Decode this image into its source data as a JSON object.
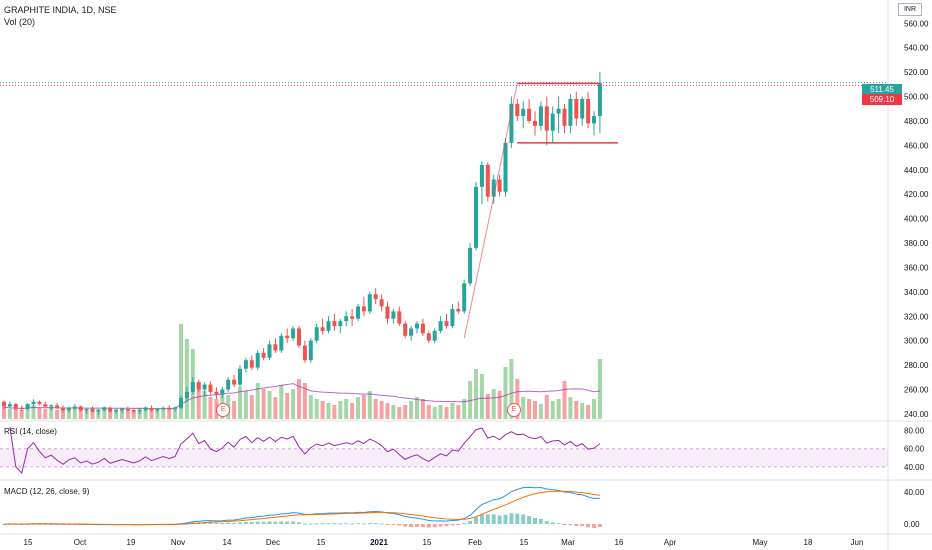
{
  "header": {
    "title": "GRAPHITE INDIA, 1D, NSE",
    "volume_label": "Vol (20)",
    "currency": "INR"
  },
  "indicators": {
    "rsi_label": "RSI (14, close)",
    "macd_label": "MACD (12, 26, close, 9)"
  },
  "price_tags": {
    "last": "511.45",
    "level": "509.10"
  },
  "events": [
    "E",
    "E"
  ],
  "colors": {
    "up": "#26a69a",
    "down": "#ef5350",
    "vol_up": "#a5d6a7",
    "vol_down": "#f7a1a4",
    "rsi_line": "#9c27b0",
    "macd_line": "#2196f3",
    "signal_line": "#ff6d00",
    "drawing": "#f23645"
  },
  "chart_data": [
    {
      "type": "candlestick",
      "title": "GRAPHITE INDIA, 1D, NSE",
      "price_axis": {
        "ticks": [
          240,
          260,
          280,
          300,
          320,
          340,
          360,
          380,
          400,
          420,
          440,
          460,
          480,
          500,
          520,
          540,
          560
        ],
        "range": [
          235,
          575
        ]
      },
      "time_axis": {
        "ticks": [
          "15",
          "Oct",
          "19",
          "Nov",
          "14",
          "Dec",
          "15",
          "2021",
          "15",
          "Feb",
          "15",
          "Mar",
          "16",
          "Apr",
          "May",
          "18",
          "Jun"
        ]
      },
      "candles": [
        [
          250,
          251,
          244,
          246
        ],
        [
          246,
          250,
          245,
          248
        ],
        [
          248,
          249,
          243,
          245
        ],
        [
          245,
          247,
          242,
          244
        ],
        [
          244,
          249,
          243,
          248
        ],
        [
          248,
          252,
          246,
          250
        ],
        [
          250,
          251,
          247,
          248
        ],
        [
          248,
          250,
          245,
          246
        ],
        [
          246,
          248,
          243,
          247
        ],
        [
          247,
          249,
          244,
          245
        ],
        [
          245,
          247,
          241,
          243
        ],
        [
          243,
          246,
          241,
          245
        ],
        [
          245,
          248,
          243,
          246
        ],
        [
          246,
          247,
          242,
          243
        ],
        [
          243,
          245,
          240,
          244
        ],
        [
          244,
          246,
          241,
          242
        ],
        [
          242,
          244,
          239,
          243
        ],
        [
          243,
          246,
          242,
          245
        ],
        [
          245,
          246,
          241,
          242
        ],
        [
          242,
          244,
          240,
          243
        ],
        [
          243,
          245,
          241,
          244
        ],
        [
          244,
          246,
          242,
          243
        ],
        [
          243,
          245,
          241,
          242
        ],
        [
          242,
          244,
          240,
          243
        ],
        [
          243,
          246,
          242,
          245
        ],
        [
          245,
          247,
          242,
          243
        ],
        [
          243,
          245,
          241,
          244
        ],
        [
          244,
          246,
          243,
          245
        ],
        [
          245,
          247,
          243,
          244
        ],
        [
          244,
          246,
          242,
          245
        ],
        [
          245,
          255,
          244,
          253
        ],
        [
          253,
          262,
          250,
          258
        ],
        [
          258,
          270,
          256,
          266
        ],
        [
          266,
          268,
          258,
          260
        ],
        [
          260,
          266,
          255,
          264
        ],
        [
          264,
          267,
          256,
          258
        ],
        [
          258,
          262,
          252,
          256
        ],
        [
          256,
          262,
          253,
          260
        ],
        [
          260,
          270,
          258,
          268
        ],
        [
          268,
          272,
          262,
          264
        ],
        [
          264,
          280,
          262,
          277
        ],
        [
          277,
          286,
          274,
          284
        ],
        [
          284,
          288,
          276,
          278
        ],
        [
          278,
          292,
          276,
          290
        ],
        [
          290,
          294,
          284,
          286
        ],
        [
          286,
          300,
          284,
          297
        ],
        [
          297,
          302,
          290,
          292
        ],
        [
          292,
          306,
          290,
          304
        ],
        [
          304,
          310,
          298,
          302
        ],
        [
          302,
          312,
          300,
          310
        ],
        [
          310,
          312,
          294,
          296
        ],
        [
          296,
          300,
          282,
          284
        ],
        [
          284,
          302,
          282,
          300
        ],
        [
          300,
          314,
          298,
          311
        ],
        [
          311,
          318,
          305,
          308
        ],
        [
          308,
          320,
          306,
          316
        ],
        [
          316,
          322,
          308,
          312
        ],
        [
          312,
          318,
          306,
          316
        ],
        [
          316,
          324,
          312,
          320
        ],
        [
          320,
          326,
          312,
          318
        ],
        [
          318,
          330,
          316,
          328
        ],
        [
          328,
          336,
          320,
          324
        ],
        [
          324,
          340,
          322,
          338
        ],
        [
          338,
          343,
          330,
          334
        ],
        [
          334,
          338,
          324,
          328
        ],
        [
          328,
          332,
          314,
          318
        ],
        [
          318,
          326,
          314,
          324
        ],
        [
          324,
          328,
          312,
          314
        ],
        [
          314,
          316,
          302,
          304
        ],
        [
          304,
          312,
          300,
          310
        ],
        [
          310,
          316,
          306,
          314
        ],
        [
          314,
          318,
          304,
          306
        ],
        [
          306,
          308,
          298,
          300
        ],
        [
          300,
          310,
          298,
          308
        ],
        [
          308,
          320,
          306,
          316
        ],
        [
          316,
          322,
          310,
          312
        ],
        [
          312,
          330,
          310,
          326
        ],
        [
          326,
          332,
          322,
          324
        ],
        [
          324,
          350,
          322,
          347
        ],
        [
          347,
          380,
          345,
          376
        ],
        [
          376,
          430,
          374,
          426
        ],
        [
          426,
          447,
          412,
          444
        ],
        [
          444,
          446,
          414,
          418
        ],
        [
          418,
          436,
          412,
          432
        ],
        [
          432,
          436,
          418,
          422
        ],
        [
          422,
          466,
          418,
          462
        ],
        [
          462,
          500,
          458,
          494
        ],
        [
          494,
          498,
          480,
          484
        ],
        [
          484,
          496,
          474,
          490
        ],
        [
          490,
          498,
          478,
          480
        ],
        [
          480,
          488,
          468,
          476
        ],
        [
          476,
          496,
          472,
          492
        ],
        [
          492,
          500,
          460,
          472
        ],
        [
          472,
          492,
          462,
          486
        ],
        [
          486,
          500,
          470,
          490
        ],
        [
          490,
          494,
          470,
          476
        ],
        [
          476,
          502,
          470,
          498
        ],
        [
          498,
          504,
          476,
          482
        ],
        [
          482,
          500,
          476,
          498
        ],
        [
          498,
          504,
          474,
          478
        ],
        [
          478,
          488,
          468,
          484
        ],
        [
          484,
          520,
          470,
          511
        ]
      ],
      "drawings": {
        "resistance": 509.1,
        "support": 462,
        "last_price": 511.45
      }
    },
    {
      "type": "bar",
      "title": "Vol (20)",
      "values": [
        12,
        10,
        11,
        9,
        13,
        14,
        11,
        10,
        12,
        9,
        10,
        11,
        12,
        10,
        9,
        11,
        10,
        12,
        9,
        10,
        11,
        10,
        9,
        11,
        12,
        10,
        9,
        11,
        10,
        12,
        95,
        80,
        70,
        35,
        28,
        22,
        20,
        26,
        24,
        18,
        32,
        28,
        24,
        36,
        30,
        28,
        22,
        34,
        26,
        30,
        40,
        36,
        24,
        20,
        18,
        16,
        14,
        18,
        20,
        16,
        22,
        24,
        28,
        20,
        18,
        16,
        14,
        12,
        14,
        18,
        22,
        20,
        14,
        12,
        14,
        12,
        16,
        14,
        20,
        38,
        50,
        45,
        25,
        30,
        28,
        52,
        60,
        40,
        22,
        20,
        18,
        15,
        24,
        18,
        20,
        38,
        22,
        18,
        16,
        14,
        20,
        60
      ],
      "ma": 20
    },
    {
      "type": "line",
      "title": "RSI (14, close)",
      "y_ticks": [
        40,
        60,
        80
      ],
      "band": [
        40,
        60
      ]
    },
    {
      "type": "line",
      "title": "MACD (12, 26, close, 9)",
      "y_ticks": [
        0,
        40
      ],
      "series": [
        {
          "name": "MACD"
        },
        {
          "name": "Signal"
        },
        {
          "name": "Histogram"
        }
      ]
    }
  ]
}
